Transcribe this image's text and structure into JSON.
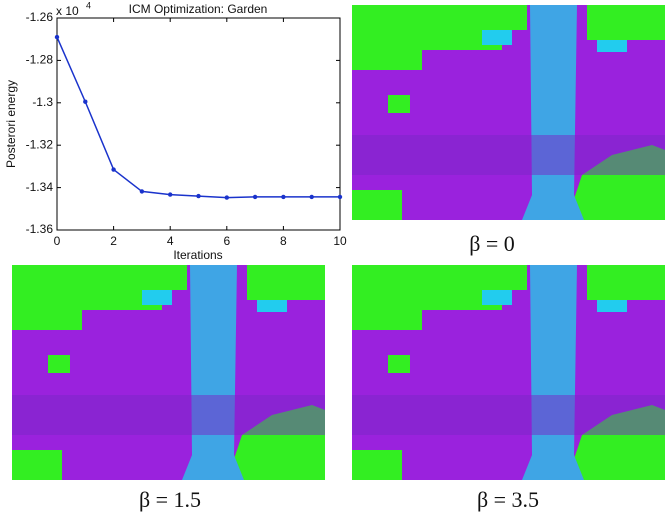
{
  "chart_data": {
    "type": "line",
    "title": "ICM Optimization: Garden",
    "x_label": "Iterations",
    "y_label": "Posterori energy",
    "y_multiplier": "x 10",
    "y_multiplier_exponent": "4",
    "x": [
      0,
      1,
      2,
      3,
      4,
      5,
      6,
      7,
      8,
      9,
      10
    ],
    "series": [
      {
        "color": "#1a33cc",
        "values": [
          -1.269,
          -1.2995,
          -1.3315,
          -1.3418,
          -1.3433,
          -1.344,
          -1.3447,
          -1.3444,
          -1.3444,
          -1.3444,
          -1.3444
        ]
      }
    ],
    "xlim": [
      0,
      10
    ],
    "xticks": [
      0,
      2,
      4,
      6,
      8,
      10
    ],
    "ylim": [
      -1.36,
      -1.26
    ],
    "yticks": [
      -1.36,
      -1.34,
      -1.32,
      -1.3,
      -1.28,
      -1.26
    ],
    "grid": false
  },
  "captions": [
    "β = 0",
    "β = 1.5",
    "β = 3.5"
  ]
}
